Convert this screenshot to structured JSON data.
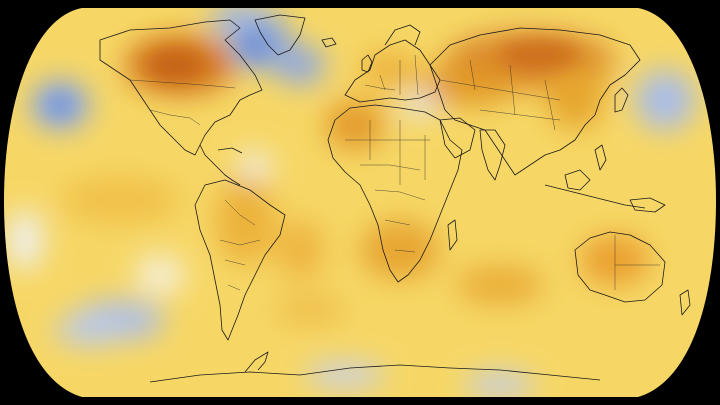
{
  "map": {
    "projection": "robinson",
    "background_color": "#000000",
    "ocean_base_color": "#f6d766",
    "coastline_color": "#1a1a1a",
    "palette": {
      "cold_strong": "#7f9cd6",
      "cold": "#a9bde8",
      "neutral": "#f4f1ea",
      "warm_light": "#f8e48a",
      "warm": "#f0c23e",
      "warm_strong": "#e29a25",
      "hot": "#cf6f1a"
    },
    "features": [
      "anomaly-field",
      "continent-outlines",
      "country-borders"
    ]
  }
}
